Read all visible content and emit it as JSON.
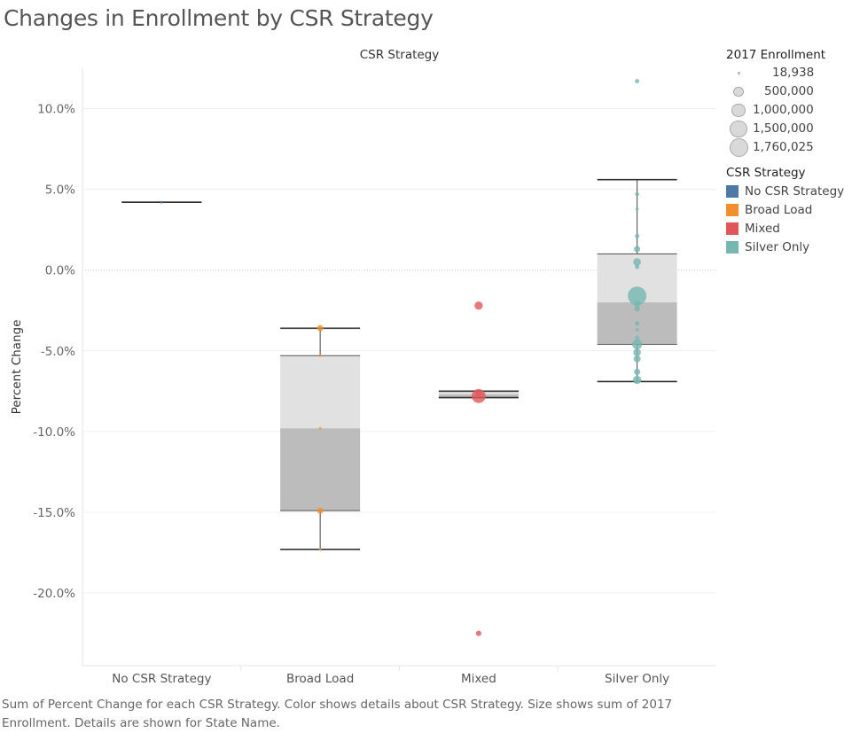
{
  "title": "Changes in Enrollment by CSR Strategy",
  "caption": "Sum of Percent Change for each CSR Strategy.  Color shows details about CSR Strategy.  Size shows sum of 2017 Enrollment.  Details are shown for State Name.",
  "legend": {
    "size_title": "2017 Enrollment",
    "size_items": [
      {
        "label": "18,938",
        "value": 18938
      },
      {
        "label": "500,000",
        "value": 500000
      },
      {
        "label": "1,000,000",
        "value": 1000000
      },
      {
        "label": "1,500,000",
        "value": 1500000
      },
      {
        "label": "1,760,025",
        "value": 1760025
      }
    ],
    "color_title": "CSR Strategy",
    "color_items": [
      {
        "label": "No CSR Strategy",
        "color": "#4e79a7"
      },
      {
        "label": "Broad Load",
        "color": "#f28e2b"
      },
      {
        "label": "Mixed",
        "color": "#e15759"
      },
      {
        "label": "Silver Only",
        "color": "#76b7b2"
      }
    ]
  },
  "chart_data": {
    "type": "scatter",
    "subtype": "box-and-whisker",
    "title": "Changes in Enrollment by CSR Strategy",
    "column_header": "CSR Strategy",
    "xlabel": "",
    "ylabel": "Percent Change",
    "ylim": [
      -24.5,
      12.5
    ],
    "yticks": [
      10,
      5,
      0,
      -5,
      -10,
      -15,
      -20
    ],
    "ytick_labels": [
      "10.0%",
      "5.0%",
      "0.0%",
      "-5.0%",
      "-10.0%",
      "-15.0%",
      "-20.0%"
    ],
    "categories": [
      "No CSR Strategy",
      "Broad Load",
      "Mixed",
      "Silver Only"
    ],
    "boxes": [
      {
        "category": "No CSR Strategy",
        "whisker_low": 4.2,
        "q1": 4.2,
        "median": 4.2,
        "q3": 4.2,
        "whisker_high": 4.2
      },
      {
        "category": "Broad Load",
        "whisker_low": -17.3,
        "q1": -14.9,
        "median": -9.8,
        "q3": -5.3,
        "whisker_high": -3.6
      },
      {
        "category": "Mixed",
        "whisker_low": -7.9,
        "q1": -7.9,
        "median": -7.7,
        "q3": -7.5,
        "whisker_high": -7.5
      },
      {
        "category": "Silver Only",
        "whisker_low": -6.9,
        "q1": -4.6,
        "median": -2.0,
        "q3": 1.0,
        "whisker_high": 5.6
      }
    ],
    "series": [
      {
        "name": "No CSR Strategy",
        "color": "#4e79a7",
        "points": [
          {
            "y": 4.2,
            "size": 18938
          }
        ]
      },
      {
        "name": "Broad Load",
        "color": "#f28e2b",
        "points": [
          {
            "y": -3.6,
            "size": 200000
          },
          {
            "y": -5.3,
            "size": 30000
          },
          {
            "y": -9.8,
            "size": 25000
          },
          {
            "y": -14.9,
            "size": 200000
          },
          {
            "y": -17.3,
            "size": 25000
          }
        ]
      },
      {
        "name": "Mixed",
        "color": "#e15759",
        "points": [
          {
            "y": -2.2,
            "size": 350000
          },
          {
            "y": -7.6,
            "size": 200000
          },
          {
            "y": -7.8,
            "size": 1000000
          },
          {
            "y": -22.5,
            "size": 150000
          }
        ]
      },
      {
        "name": "Silver Only",
        "color": "#76b7b2",
        "points": [
          {
            "y": 11.7,
            "size": 100000
          },
          {
            "y": 4.7,
            "size": 80000
          },
          {
            "y": 3.8,
            "size": 50000
          },
          {
            "y": 2.1,
            "size": 100000
          },
          {
            "y": 1.3,
            "size": 200000
          },
          {
            "y": 0.5,
            "size": 300000
          },
          {
            "y": 0.2,
            "size": 100000
          },
          {
            "y": -1.6,
            "size": 1760025
          },
          {
            "y": -2.1,
            "size": 200000
          },
          {
            "y": -2.4,
            "size": 150000
          },
          {
            "y": -3.3,
            "size": 100000
          },
          {
            "y": -3.7,
            "size": 60000
          },
          {
            "y": -4.2,
            "size": 100000
          },
          {
            "y": -4.6,
            "size": 500000
          },
          {
            "y": -5.1,
            "size": 300000
          },
          {
            "y": -5.5,
            "size": 250000
          },
          {
            "y": -6.3,
            "size": 200000
          },
          {
            "y": -6.8,
            "size": 350000
          },
          {
            "y": -6.9,
            "size": 100000
          }
        ]
      }
    ]
  }
}
